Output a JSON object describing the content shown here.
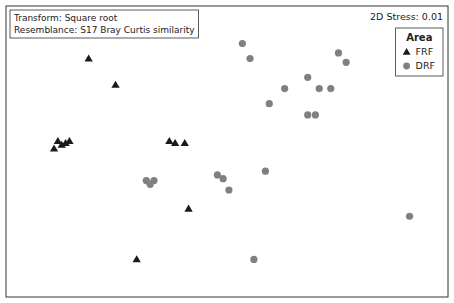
{
  "chart_data": {
    "type": "scatter",
    "series": [
      {
        "name": "FRF",
        "color": "#1a1a1a",
        "marker": "triangle",
        "x": [
          -0.62,
          -0.48,
          -0.78,
          -0.8,
          -0.76,
          -0.74,
          -0.72,
          -0.2,
          -0.17,
          -0.12,
          -0.1,
          -0.37
        ],
        "values": [
          0.52,
          0.38,
          0.08,
          0.04,
          0.06,
          0.07,
          0.08,
          0.08,
          0.07,
          0.07,
          -0.28,
          -0.55
        ]
      },
      {
        "name": "DRF",
        "color": "#808080",
        "marker": "circle",
        "x": [
          0.18,
          0.22,
          0.68,
          0.72,
          0.52,
          0.4,
          0.52,
          0.58,
          0.32,
          0.56,
          0.64,
          0.05,
          0.08,
          0.11,
          -0.28,
          -0.3,
          -0.32,
          0.3,
          1.05,
          0.24
        ],
        "values": [
          0.6,
          0.52,
          0.55,
          0.5,
          0.42,
          0.36,
          0.22,
          0.36,
          0.28,
          0.22,
          0.36,
          -0.1,
          -0.12,
          -0.18,
          -0.13,
          -0.15,
          -0.13,
          -0.08,
          -0.32,
          -0.55
        ]
      }
    ],
    "annotations": [
      "Transform: Square root",
      "Resemblance: S17 Bray Curtis similarity",
      "2D Stress: 0.01"
    ],
    "legend_title": "Area",
    "legend": "upper right",
    "xlim": [
      -1.05,
      1.25
    ],
    "ylim": [
      -0.75,
      0.8
    ],
    "grid": false,
    "tick_labels": false
  }
}
